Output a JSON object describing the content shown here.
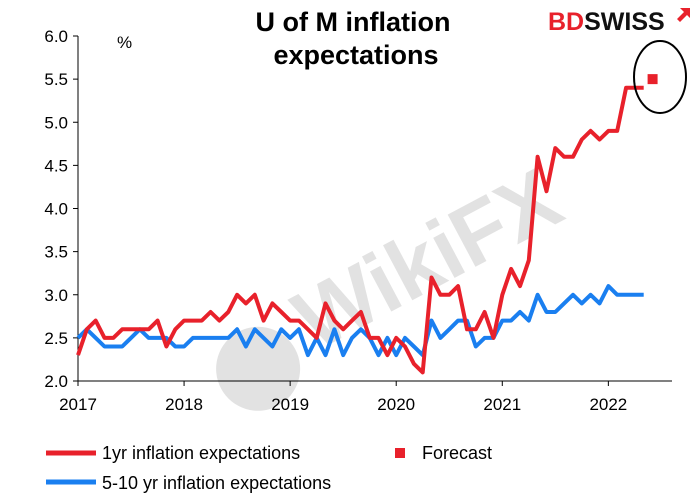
{
  "brand": {
    "part1": "BD",
    "part2": "SWISS",
    "color1": "#e8212b",
    "color2": "#111111"
  },
  "watermark": {
    "text": "WikiFX"
  },
  "chart_data": {
    "type": "line",
    "title_line1": "U of M inflation",
    "title_line2": "expectations",
    "ylabel": "%",
    "ylim": [
      2.0,
      6.0
    ],
    "yticks": [
      "2.0",
      "2.5",
      "3.0",
      "3.5",
      "4.0",
      "4.5",
      "5.0",
      "5.5",
      "6.0"
    ],
    "xlim": [
      2017.0,
      2022.6
    ],
    "xticks": [
      "2017",
      "2018",
      "2019",
      "2020",
      "2021",
      "2022"
    ],
    "grid": false,
    "legend_position": "bottom",
    "series": [
      {
        "name": "1yr inflation expectations",
        "color": "#e8212b",
        "x": [
          2017.0,
          2017.083,
          2017.167,
          2017.25,
          2017.333,
          2017.417,
          2017.5,
          2017.583,
          2017.667,
          2017.75,
          2017.833,
          2017.917,
          2018.0,
          2018.083,
          2018.167,
          2018.25,
          2018.333,
          2018.417,
          2018.5,
          2018.583,
          2018.667,
          2018.75,
          2018.833,
          2018.917,
          2019.0,
          2019.083,
          2019.167,
          2019.25,
          2019.333,
          2019.417,
          2019.5,
          2019.583,
          2019.667,
          2019.75,
          2019.833,
          2019.917,
          2020.0,
          2020.083,
          2020.167,
          2020.25,
          2020.333,
          2020.417,
          2020.5,
          2020.583,
          2020.667,
          2020.75,
          2020.833,
          2020.917,
          2021.0,
          2021.083,
          2021.167,
          2021.25,
          2021.333,
          2021.417,
          2021.5,
          2021.583,
          2021.667,
          2021.75,
          2021.833,
          2021.917,
          2022.0,
          2022.083,
          2022.167,
          2022.25,
          2022.333
        ],
        "values": [
          2.3,
          2.6,
          2.7,
          2.5,
          2.5,
          2.6,
          2.6,
          2.6,
          2.6,
          2.7,
          2.4,
          2.6,
          2.7,
          2.7,
          2.7,
          2.8,
          2.7,
          2.8,
          3.0,
          2.9,
          3.0,
          2.7,
          2.9,
          2.8,
          2.7,
          2.7,
          2.6,
          2.5,
          2.9,
          2.7,
          2.6,
          2.7,
          2.8,
          2.5,
          2.5,
          2.3,
          2.5,
          2.4,
          2.2,
          2.1,
          3.2,
          3.0,
          3.0,
          3.1,
          2.6,
          2.6,
          2.8,
          2.5,
          3.0,
          3.3,
          3.1,
          3.4,
          4.6,
          4.2,
          4.7,
          4.6,
          4.6,
          4.8,
          4.9,
          4.8,
          4.9,
          4.9,
          5.4,
          5.4,
          5.4
        ]
      },
      {
        "name": "5-10 yr inflation expectations",
        "color": "#1a7ff0",
        "x": [
          2017.0,
          2017.083,
          2017.167,
          2017.25,
          2017.333,
          2017.417,
          2017.5,
          2017.583,
          2017.667,
          2017.75,
          2017.833,
          2017.917,
          2018.0,
          2018.083,
          2018.167,
          2018.25,
          2018.333,
          2018.417,
          2018.5,
          2018.583,
          2018.667,
          2018.75,
          2018.833,
          2018.917,
          2019.0,
          2019.083,
          2019.167,
          2019.25,
          2019.333,
          2019.417,
          2019.5,
          2019.583,
          2019.667,
          2019.75,
          2019.833,
          2019.917,
          2020.0,
          2020.083,
          2020.167,
          2020.25,
          2020.333,
          2020.417,
          2020.5,
          2020.583,
          2020.667,
          2020.75,
          2020.833,
          2020.917,
          2021.0,
          2021.083,
          2021.167,
          2021.25,
          2021.333,
          2021.417,
          2021.5,
          2021.583,
          2021.667,
          2021.75,
          2021.833,
          2021.917,
          2022.0,
          2022.083,
          2022.167,
          2022.25,
          2022.333
        ],
        "values": [
          2.5,
          2.6,
          2.5,
          2.4,
          2.4,
          2.4,
          2.5,
          2.6,
          2.5,
          2.5,
          2.5,
          2.4,
          2.4,
          2.5,
          2.5,
          2.5,
          2.5,
          2.5,
          2.6,
          2.4,
          2.6,
          2.5,
          2.4,
          2.6,
          2.5,
          2.6,
          2.3,
          2.5,
          2.3,
          2.6,
          2.3,
          2.5,
          2.6,
          2.5,
          2.3,
          2.5,
          2.3,
          2.5,
          2.4,
          2.3,
          2.7,
          2.5,
          2.6,
          2.7,
          2.7,
          2.4,
          2.5,
          2.5,
          2.7,
          2.7,
          2.8,
          2.7,
          3.0,
          2.8,
          2.8,
          2.9,
          3.0,
          2.9,
          3.0,
          2.9,
          3.1,
          3.0,
          3.0,
          3.0,
          3.0
        ]
      },
      {
        "name": "Forecast",
        "color": "#e8212b",
        "marker": "square",
        "x": [
          2022.417
        ],
        "values": [
          5.5
        ]
      }
    ]
  }
}
